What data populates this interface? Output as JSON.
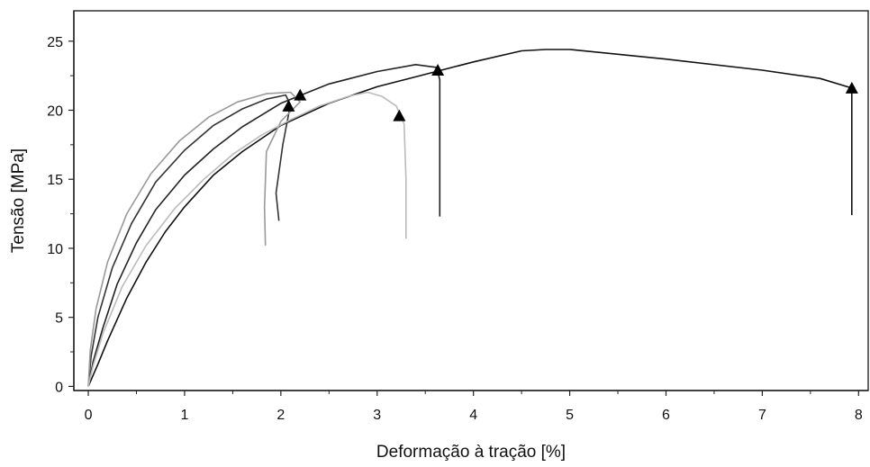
{
  "chart_data": {
    "type": "line",
    "xlabel": "Deformação à tração [%]",
    "ylabel": "Tensão [MPa]",
    "xlim": [
      -0.15,
      8.1
    ],
    "ylim": [
      -0.3,
      27.2
    ],
    "x_ticks": [
      "0",
      "1",
      "2",
      "3",
      "4",
      "5",
      "6",
      "7",
      "8"
    ],
    "y_ticks": [
      "0",
      "5",
      "10",
      "15",
      "20",
      "25"
    ],
    "grid": false,
    "legend": "none",
    "series": [
      {
        "color": "#111111",
        "points": [
          [
            0,
            0
          ],
          [
            0.1,
            1.6
          ],
          [
            0.2,
            3.3
          ],
          [
            0.4,
            6.4
          ],
          [
            0.6,
            9.0
          ],
          [
            0.8,
            11.2
          ],
          [
            1.0,
            13.0
          ],
          [
            1.3,
            15.3
          ],
          [
            1.6,
            17.0
          ],
          [
            2.0,
            18.9
          ],
          [
            2.5,
            20.5
          ],
          [
            3.0,
            21.7
          ],
          [
            3.5,
            22.6
          ],
          [
            4.0,
            23.5
          ],
          [
            4.5,
            24.3
          ],
          [
            4.75,
            24.4
          ],
          [
            5.0,
            24.4
          ],
          [
            6.0,
            23.7
          ],
          [
            7.0,
            22.9
          ],
          [
            7.6,
            22.3
          ],
          [
            7.93,
            21.6
          ],
          [
            7.93,
            12.4
          ]
        ],
        "break_marker": [
          7.93,
          21.6
        ]
      },
      {
        "color": "#222222",
        "points": [
          [
            0,
            0
          ],
          [
            0.05,
            1.8
          ],
          [
            0.15,
            4.2
          ],
          [
            0.3,
            7.4
          ],
          [
            0.5,
            10.4
          ],
          [
            0.7,
            12.8
          ],
          [
            1.0,
            15.3
          ],
          [
            1.3,
            17.2
          ],
          [
            1.6,
            18.8
          ],
          [
            2.0,
            20.5
          ],
          [
            2.5,
            21.9
          ],
          [
            3.0,
            22.8
          ],
          [
            3.4,
            23.3
          ],
          [
            3.62,
            23.1
          ],
          [
            3.65,
            22.2
          ],
          [
            3.65,
            12.3
          ]
        ],
        "break_marker": [
          3.63,
          22.9
        ]
      },
      {
        "color": "#333333",
        "points": [
          [
            0,
            0
          ],
          [
            0.03,
            2.2
          ],
          [
            0.1,
            5.0
          ],
          [
            0.25,
            8.6
          ],
          [
            0.45,
            11.8
          ],
          [
            0.7,
            14.8
          ],
          [
            1.0,
            17.1
          ],
          [
            1.3,
            18.9
          ],
          [
            1.6,
            20.1
          ],
          [
            1.85,
            20.8
          ],
          [
            2.05,
            21.1
          ],
          [
            2.1,
            20.4
          ],
          [
            2.02,
            17.5
          ],
          [
            1.95,
            14.0
          ],
          [
            1.98,
            12.0
          ]
        ],
        "break_marker": [
          2.08,
          20.3
        ]
      },
      {
        "color": "#999999",
        "points": [
          [
            0,
            0
          ],
          [
            0.02,
            2.6
          ],
          [
            0.08,
            5.6
          ],
          [
            0.2,
            9.0
          ],
          [
            0.4,
            12.5
          ],
          [
            0.65,
            15.4
          ],
          [
            0.95,
            17.8
          ],
          [
            1.25,
            19.5
          ],
          [
            1.55,
            20.6
          ],
          [
            1.85,
            21.2
          ],
          [
            2.1,
            21.3
          ],
          [
            2.2,
            20.6
          ],
          [
            2.0,
            19.2
          ],
          [
            1.85,
            17.0
          ],
          [
            1.83,
            13.0
          ],
          [
            1.84,
            10.2
          ]
        ],
        "break_marker": [
          2.2,
          21.1
        ]
      },
      {
        "color": "#bbbbbb",
        "points": [
          [
            0,
            0
          ],
          [
            0.05,
            1.5
          ],
          [
            0.15,
            3.8
          ],
          [
            0.35,
            7.2
          ],
          [
            0.6,
            10.2
          ],
          [
            0.9,
            12.9
          ],
          [
            1.2,
            15.0
          ],
          [
            1.5,
            16.8
          ],
          [
            1.8,
            18.2
          ],
          [
            2.1,
            19.3
          ],
          [
            2.4,
            20.3
          ],
          [
            2.7,
            21.0
          ],
          [
            2.9,
            21.3
          ],
          [
            3.05,
            21.0
          ],
          [
            3.2,
            20.3
          ],
          [
            3.28,
            19.0
          ],
          [
            3.3,
            15.0
          ],
          [
            3.3,
            10.7
          ]
        ],
        "break_marker": [
          3.23,
          19.6
        ]
      }
    ]
  }
}
